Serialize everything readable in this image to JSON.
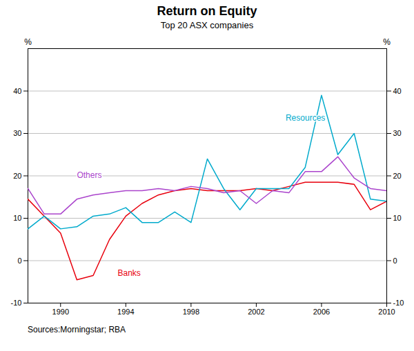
{
  "chart_data": {
    "type": "line",
    "title": "Return on Equity",
    "subtitle": "Top 20 ASX companies",
    "source": "Sources:Morningstar; RBA",
    "ylabel": "%",
    "y2label": "%",
    "x": [
      1988,
      1989,
      1990,
      1991,
      1992,
      1993,
      1994,
      1995,
      1996,
      1997,
      1998,
      1999,
      2000,
      2001,
      2002,
      2003,
      2004,
      2005,
      2006,
      2007,
      2008,
      2009,
      2010
    ],
    "series": [
      {
        "name": "Banks",
        "color": "#e8000d",
        "values": [
          14.5,
          10.5,
          6.5,
          -4.5,
          -3.5,
          5.0,
          10.5,
          13.5,
          15.5,
          16.5,
          17.0,
          16.5,
          16.5,
          16.5,
          17.0,
          16.5,
          17.5,
          18.5,
          18.5,
          18.5,
          18.0,
          12.0,
          14.0
        ]
      },
      {
        "name": "Resources",
        "color": "#00aacc",
        "values": [
          7.5,
          10.5,
          7.5,
          8.0,
          10.5,
          11.0,
          12.5,
          9.0,
          9.0,
          11.5,
          9.0,
          24.0,
          17.0,
          12.0,
          17.0,
          17.0,
          17.0,
          22.0,
          39.0,
          25.0,
          30.0,
          14.5,
          14.0
        ]
      },
      {
        "name": "Others",
        "color": "#aa44cc",
        "values": [
          17.0,
          11.0,
          11.0,
          14.5,
          15.5,
          16.0,
          16.5,
          16.5,
          17.0,
          16.5,
          17.5,
          17.0,
          16.0,
          16.5,
          13.5,
          16.5,
          16.0,
          21.0,
          21.0,
          24.5,
          19.5,
          17.0,
          16.5
        ]
      }
    ],
    "annotations": [
      {
        "text": "Banks",
        "x": 1993.5,
        "y": -3.5
      },
      {
        "text": "Resources",
        "x": 2003.8,
        "y": 33.0
      },
      {
        "text": "Others",
        "x": 1991.0,
        "y": 19.5
      }
    ],
    "xlim": [
      1988,
      2010
    ],
    "xticks": [
      1990,
      1994,
      1998,
      2002,
      2006,
      2010
    ],
    "ylim": [
      -10,
      50
    ],
    "yticks": [
      -10,
      0,
      10,
      20,
      30,
      40
    ],
    "y2lim": [
      -10,
      50
    ],
    "y2ticks": [
      -10,
      0,
      10,
      20,
      30,
      40
    ],
    "grid": true
  }
}
